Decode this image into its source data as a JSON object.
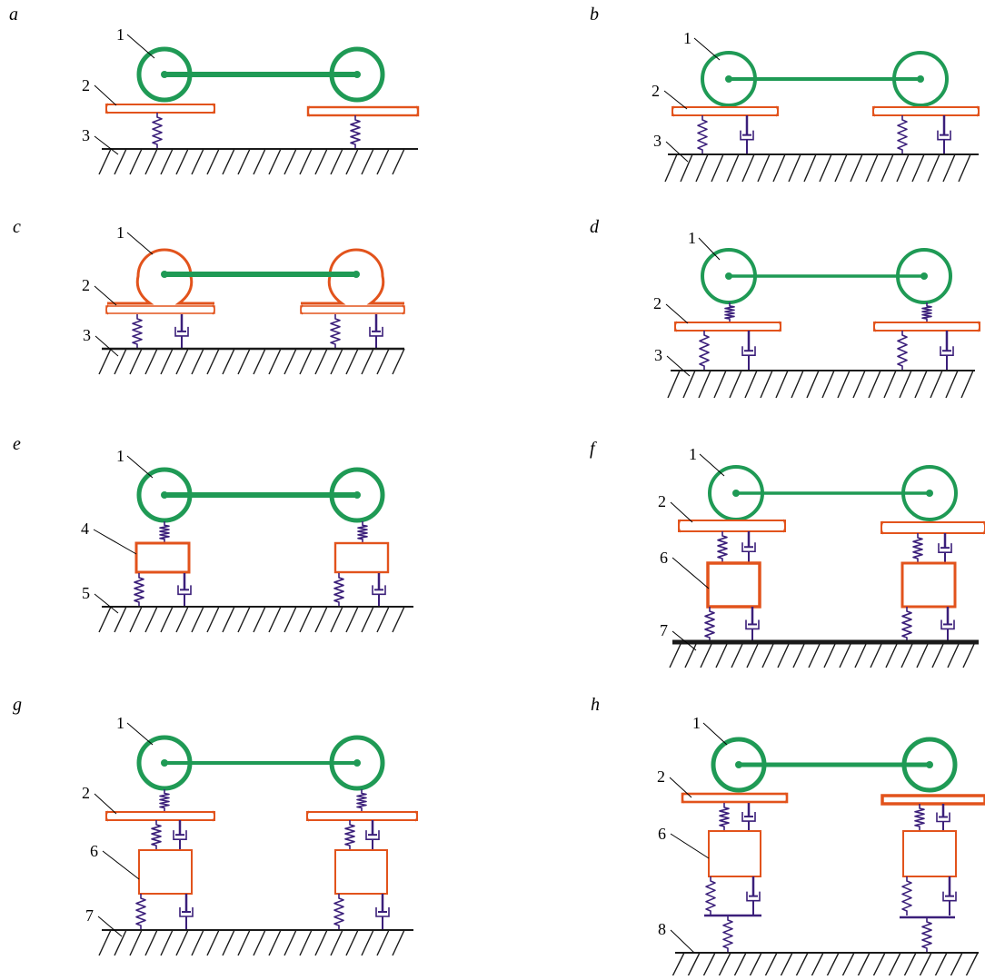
{
  "colors": {
    "wheel": "#1f9a55",
    "rail": "#e2531c",
    "spring": "#3b1f7a",
    "damper": "#3b1f7a",
    "ground": "#1a1a1a"
  },
  "panels": [
    {
      "id": "a",
      "label": "a",
      "numbers": [
        "1",
        "2",
        "3"
      ]
    },
    {
      "id": "b",
      "label": "b",
      "numbers": [
        "1",
        "2",
        "3"
      ]
    },
    {
      "id": "c",
      "label": "c",
      "numbers": [
        "1",
        "2",
        "3"
      ]
    },
    {
      "id": "d",
      "label": "d",
      "numbers": [
        "1",
        "2",
        "3"
      ]
    },
    {
      "id": "e",
      "label": "e",
      "numbers": [
        "1",
        "4",
        "5"
      ]
    },
    {
      "id": "f",
      "label": "f",
      "numbers": [
        "1",
        "2",
        "6",
        "7"
      ]
    },
    {
      "id": "g",
      "label": "g",
      "numbers": [
        "1",
        "2",
        "6",
        "7"
      ]
    },
    {
      "id": "h",
      "label": "h",
      "numbers": [
        "1",
        "2",
        "6",
        "8"
      ]
    }
  ]
}
